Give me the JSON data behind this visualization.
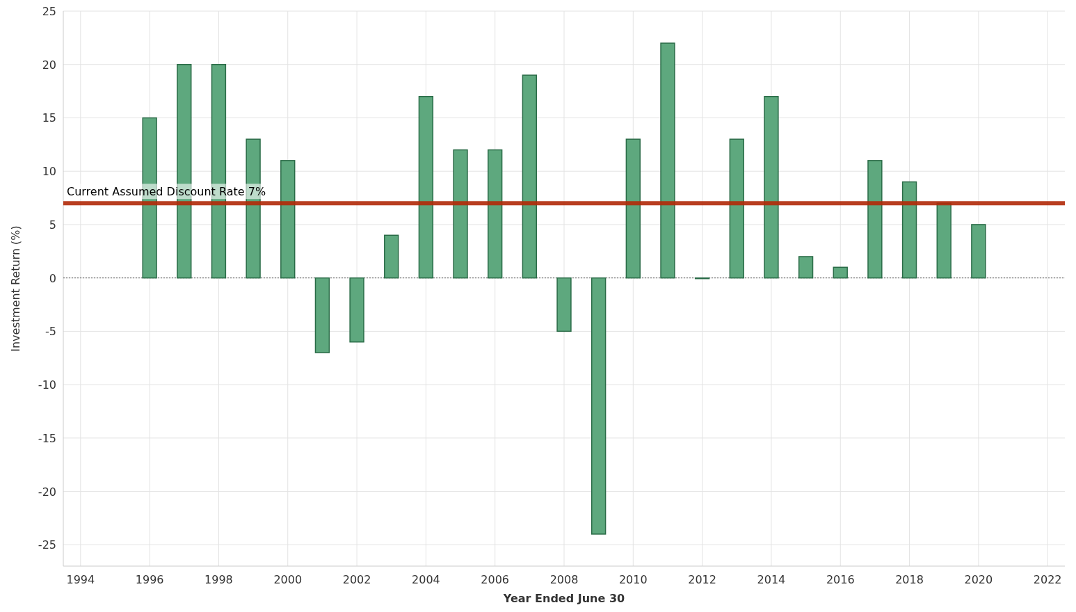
{
  "chart_data": {
    "type": "bar",
    "xlabel": "Year Ended June 30",
    "ylabel": "Investment Return (%)",
    "x": [
      1996,
      1997,
      1998,
      1999,
      2000,
      2001,
      2002,
      2003,
      2004,
      2005,
      2006,
      2007,
      2008,
      2009,
      2010,
      2011,
      2012,
      2013,
      2014,
      2015,
      2016,
      2017,
      2018,
      2019,
      2020
    ],
    "values": [
      15,
      20,
      20,
      13,
      11,
      -7,
      -6,
      4,
      17,
      12,
      12,
      19,
      -5,
      -24,
      13,
      22,
      0,
      13,
      17,
      2,
      1,
      11,
      9,
      7,
      5
    ],
    "color": "#5ea87e",
    "xlim": [
      1993.5,
      2022.5
    ],
    "xticks": [
      1994,
      1996,
      1998,
      2000,
      2002,
      2004,
      2006,
      2008,
      2010,
      2012,
      2014,
      2016,
      2018,
      2020,
      2022
    ],
    "ylim": [
      -27,
      25
    ],
    "yticks": [
      -25,
      -20,
      -15,
      -10,
      -5,
      0,
      5,
      10,
      15,
      20,
      25
    ],
    "grid": true,
    "ref_lines": [
      {
        "axis": "y",
        "value": 7,
        "label": "Current Assumed Discount Rate 7%",
        "color": "#b22a08"
      },
      {
        "axis": "y",
        "value": 0,
        "color": "#555555",
        "line_style": "dotted"
      }
    ]
  }
}
